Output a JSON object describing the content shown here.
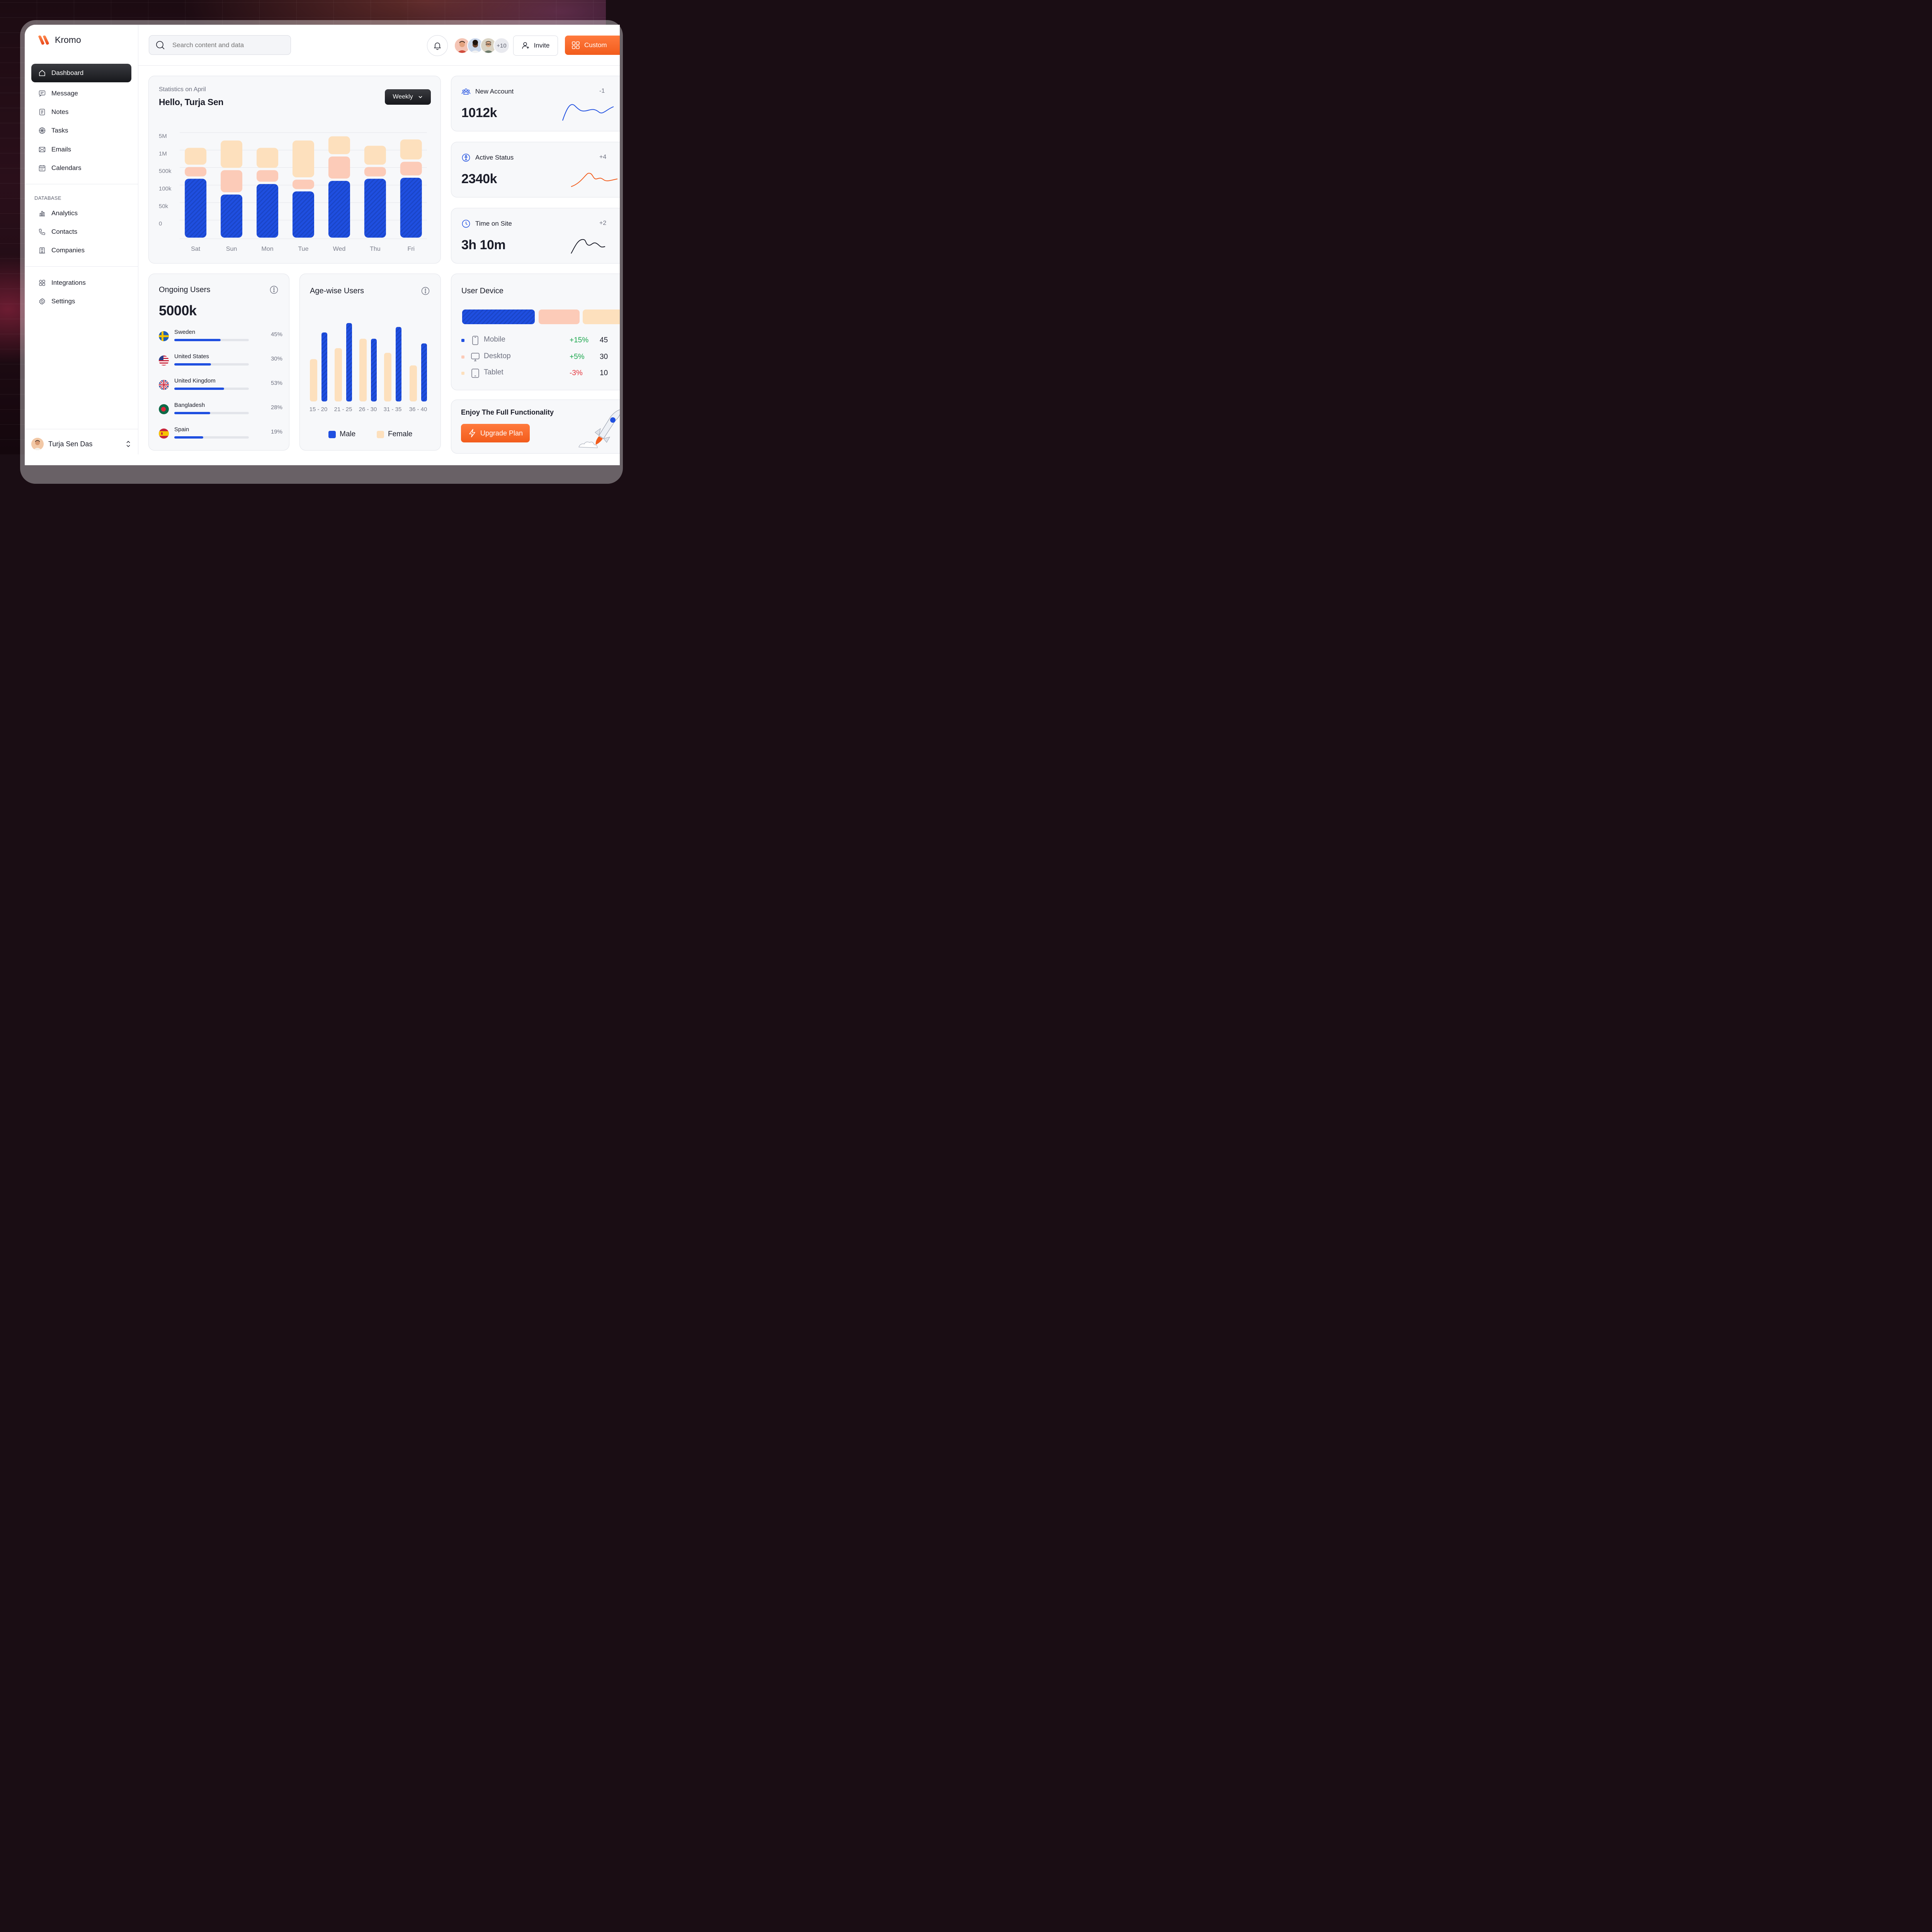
{
  "app": {
    "name": "Kromo",
    "brand_color": "#f25c1c",
    "accent_blue": "#1f4fe0"
  },
  "sidebar": {
    "items": [
      {
        "label": "Dashboard",
        "icon": "home-icon",
        "active": true
      },
      {
        "label": "Message",
        "icon": "message-icon"
      },
      {
        "label": "Notes",
        "icon": "notes-icon"
      },
      {
        "label": "Tasks",
        "icon": "tasks-icon"
      },
      {
        "label": "Emails",
        "icon": "mail-icon"
      },
      {
        "label": "Calendars",
        "icon": "calendar-icon"
      }
    ],
    "database_label": "DATABASE",
    "database_items": [
      {
        "label": "Analytics",
        "icon": "chart-icon"
      },
      {
        "label": "Contacts",
        "icon": "phone-icon"
      },
      {
        "label": "Companies",
        "icon": "building-icon"
      }
    ],
    "bottom_items": [
      {
        "label": "Integrations",
        "icon": "grid-icon"
      },
      {
        "label": "Settings",
        "icon": "gear-icon"
      }
    ],
    "profile_name": "Turja Sen Das"
  },
  "header": {
    "search_placeholder": "Search content and data",
    "extra_avatars": "+10",
    "invite_label": "Invite",
    "customize_label": "Custom"
  },
  "stats": {
    "subtitle": "Statistics on April",
    "title": "Hello, Turja Sen",
    "period": "Weekly"
  },
  "chart_data": [
    {
      "type": "bar",
      "stacked": true,
      "categories": [
        "Sat",
        "Sun",
        "Mon",
        "Tue",
        "Wed",
        "Thu",
        "Fri"
      ],
      "y_ticks": [
        "5M",
        "1M",
        "500k",
        "100k",
        "50k",
        "0"
      ],
      "series": [
        {
          "color": "#1f4fe0",
          "values": [
            0.56,
            0.41,
            0.51,
            0.44,
            0.54,
            0.56,
            0.57
          ]
        },
        {
          "color": "#fccbb8",
          "values": [
            0.09,
            0.21,
            0.11,
            0.09,
            0.21,
            0.09,
            0.13
          ]
        },
        {
          "color": "#fde0bd",
          "values": [
            0.16,
            0.26,
            0.19,
            0.35,
            0.17,
            0.18,
            0.19
          ]
        }
      ]
    },
    {
      "type": "bar",
      "categories": [
        "15 - 20",
        "21 - 25",
        "26 - 30",
        "31 - 35",
        "36 - 40"
      ],
      "series": [
        {
          "name": "Female",
          "color": "#fde0bd",
          "values": [
            0.54,
            0.68,
            0.8,
            0.62,
            0.46
          ]
        },
        {
          "name": "Male",
          "color": "#1f4fe0",
          "values": [
            0.88,
            1.0,
            0.8,
            0.95,
            0.74
          ]
        }
      ]
    }
  ],
  "metrics": [
    {
      "label": "New Account",
      "value": "1012k",
      "delta": "-1",
      "icon": "users-icon",
      "color": "#1f4fe0"
    },
    {
      "label": "Active Status",
      "value": "2340k",
      "delta": "+4",
      "icon": "activity-icon",
      "color": "#f25c1c"
    },
    {
      "label": "Time on Site",
      "value": "3h 10m",
      "delta": "+2",
      "icon": "clock-icon",
      "color": "#1b1d29"
    }
  ],
  "ongoing": {
    "title": "Ongoing Users",
    "value": "5000k",
    "countries": [
      {
        "name": "Sweden",
        "pct": "45%",
        "fraction": 0.62
      },
      {
        "name": "United States",
        "pct": "30%",
        "fraction": 0.49
      },
      {
        "name": "United Kingdom",
        "pct": "53%",
        "fraction": 0.67
      },
      {
        "name": "Bangladesh",
        "pct": "28%",
        "fraction": 0.48
      },
      {
        "name": "Spain",
        "pct": "19%",
        "fraction": 0.39
      }
    ]
  },
  "agewise": {
    "title": "Age-wise Users",
    "legend_male": "Male",
    "legend_female": "Female"
  },
  "device": {
    "title": "User Device",
    "rows": [
      {
        "name": "Mobile",
        "change": "+15%",
        "count": "45",
        "color": "#1f4fe0",
        "change_color": "#19a64b"
      },
      {
        "name": "Desktop",
        "change": "+5%",
        "count": "30",
        "color": "#fccbb8",
        "change_color": "#19a64b"
      },
      {
        "name": "Tablet",
        "change": "-3%",
        "count": "10",
        "color": "#fde0bd",
        "change_color": "#e5333b"
      }
    ]
  },
  "upgrade": {
    "title": "Enjoy The Full Functionality",
    "button": "Upgrade Plan"
  }
}
